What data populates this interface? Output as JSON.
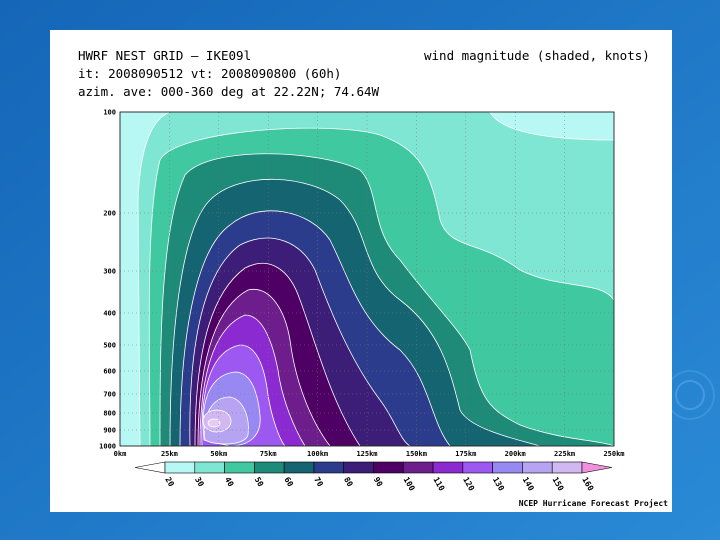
{
  "header": {
    "line1": "HWRF NEST GRID — IKE09l",
    "line2": "it: 2008090512   vt: 2008090800 (60h)",
    "line3": "azim. ave: 000-360 deg at 22.22N; 74.64W",
    "right": "wind magnitude (shaded, knots)"
  },
  "plot": {
    "y_labels": [
      "100",
      "200",
      "300",
      "400",
      "500",
      "600",
      "700",
      "800",
      "900",
      "1000"
    ],
    "x_labels": [
      "0km",
      "25km",
      "50km",
      "75km",
      "100km",
      "125km",
      "150km",
      "175km",
      "200km",
      "225km",
      "250km"
    ]
  },
  "colorbar": {
    "levels": [
      "20",
      "30",
      "40",
      "50",
      "60",
      "70",
      "80",
      "90",
      "100",
      "110",
      "120",
      "130",
      "140",
      "150",
      "160"
    ],
    "colors": [
      "#ffffff",
      "#b8f8f4",
      "#7ee6d2",
      "#40c8a0",
      "#1e8a78",
      "#156472",
      "#2c3c8c",
      "#3c1e78",
      "#4e0064",
      "#6e1e8c",
      "#8a2ad0",
      "#9e58f2",
      "#9888f2",
      "#b6a4f2",
      "#d2b8f2",
      "#e6ccf4",
      "#f090dc"
    ]
  },
  "footer": "NCEP Hurricane Forecast Project"
}
